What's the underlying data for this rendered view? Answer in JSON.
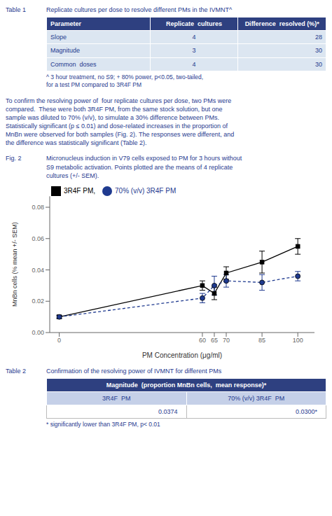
{
  "color": "#1f3a8f",
  "tables": [
    {
      "label": "Table 1",
      "title": "Replicate cultures per dose to resolve different PMs in the IVMNT^",
      "header": [
        "Parameter",
        "Replicate  cultures",
        "Difference  resolved (%)*"
      ],
      "rows": [
        [
          "Slope",
          "4",
          "28"
        ],
        [
          "Magnitude",
          "3",
          "30"
        ],
        [
          "Common  doses",
          "4",
          "30"
        ]
      ],
      "footnote": "^ 3 hour treatment, no S9; + 80% power, p<0.05, two-tailed,\nfor a test PM compared to 3R4F PM",
      "colors": {
        "header": "#2e4080",
        "header_text": "#ffffff",
        "rows": "#dce6f1",
        "text": "#1f3a8f"
      }
    },
    {
      "label": "Table 2",
      "title": "Confirmation of the resolving power of IVMNT for different PMs",
      "header": "Magnitude  (proportion MnBn cells,  mean response)*",
      "subheader": [
        "3R4F  PM",
        "70% (v/v) 3R4F  PM"
      ],
      "values": [
        "0.0374",
        "0.0300*"
      ],
      "footnote": "* significantly lower than 3R4F PM, p< 0.01",
      "colors": {
        "header": "#2e4080",
        "header_text": "#ffffff",
        "subheader": "#c5d0e8",
        "values": "#ffffff",
        "value_border": "#bbbbbb",
        "text": "#1f3a8f"
      }
    }
  ],
  "paragraph": "To confirm the resolving power of  four replicate cultures per dose, two PMs were\ncompared.  These were both 3R4F PM, from the same stock solution, but one\nsample was diluted to 70% (v/v), to simulate a 30% difference between PMs.\nStatistically significant (p ≤ 0.01) and dose-related increases in the proportion of\nMnBn were observed for both samples (Fig. 2). The responses were different, and\nthe difference was statistically significant (Table 2).",
  "chart_data": {
    "type": "line",
    "title": "Fig. 2",
    "subtitle": "Micronucleus induction in V79 cells exposed to PM for 3 hours without\nS9 metabolic activation. Points plotted are the means of 4 replicate\ncultures (+/- SEM).",
    "x": [
      0,
      60,
      65,
      70,
      85,
      100
    ],
    "xlim": [
      -4,
      107
    ],
    "xticks": [
      0,
      60,
      65,
      70,
      85,
      100
    ],
    "ylim": [
      0,
      0.087
    ],
    "yticks": [
      {
        "value": 0,
        "label": "0.00"
      },
      0.02,
      0.04,
      0.06,
      0.08
    ],
    "xlabel": "PM Concentration (μg/ml)",
    "ylabel": "MnBn cells (% mean +/- SEM)",
    "legend": "top",
    "series": [
      {
        "name": "3R4F PM,",
        "color": "#000000",
        "marker": "square",
        "line_style": "solid",
        "values": [
          0.01,
          0.03,
          0.025,
          0.038,
          0.045,
          0.055
        ],
        "errors": [
          0.001,
          0.003,
          0.004,
          0.004,
          0.007,
          0.005
        ]
      },
      {
        "name": "70% (v/v) 3R4F PM",
        "color": "#1f3a8f",
        "marker": "circle",
        "line_style": "dashed",
        "values": [
          0.01,
          0.022,
          0.03,
          0.033,
          0.032,
          0.036
        ],
        "errors": [
          0.001,
          0.003,
          0.006,
          0.004,
          0.005,
          0.003
        ]
      }
    ]
  }
}
